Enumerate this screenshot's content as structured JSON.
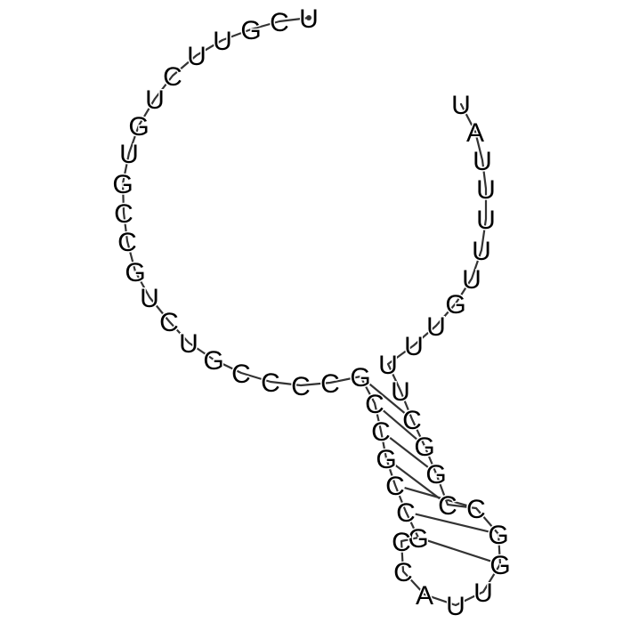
{
  "colors": {
    "backbone": "#333333",
    "pair_bond": "#333333",
    "letter": "#000000",
    "background": "#ffffff"
  },
  "structure": {
    "sequence": [
      "U",
      "C",
      "G",
      "U",
      "U",
      "C",
      "U",
      "G",
      "U",
      "G",
      "C",
      "C",
      "G",
      "U",
      "C",
      "U",
      "G",
      "C",
      "C",
      "C",
      "C",
      "G",
      "C",
      "C",
      "G",
      "C",
      "C",
      "G",
      "C",
      "C",
      "A",
      "U",
      "U",
      "G",
      "G",
      "C",
      "C",
      "G",
      "G",
      "C",
      "U",
      "U",
      "U",
      "U",
      "G",
      "U",
      "U",
      "U",
      "U",
      "U",
      "A",
      "U"
    ],
    "pairs": [
      [
        22,
        40
      ],
      [
        23,
        39
      ],
      [
        24,
        38
      ],
      [
        25,
        37
      ],
      [
        26,
        36
      ],
      [
        27,
        35
      ],
      [
        28,
        34
      ]
    ],
    "start_marker": "5-prime-dot"
  }
}
